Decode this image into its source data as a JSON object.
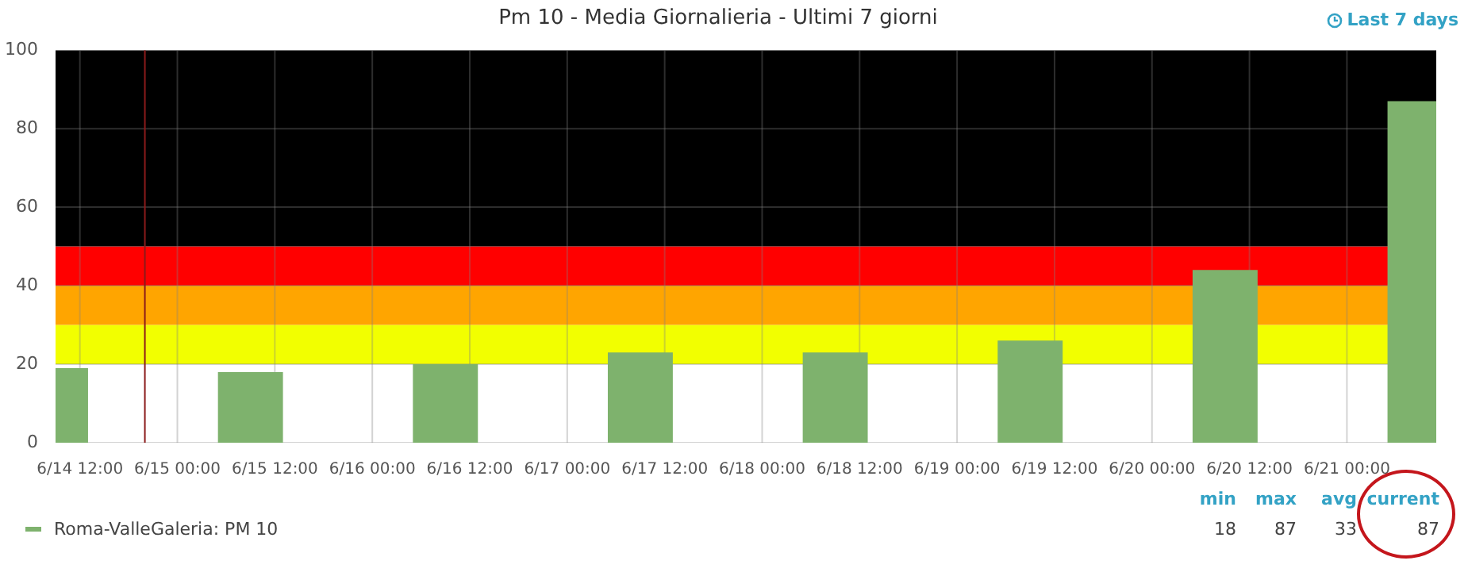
{
  "chart_data": {
    "type": "bar",
    "title": "Pm 10 - Media Giornalieria - Ultimi 7 giorni",
    "x": [
      "--06-14T09:00",
      "--06-15T09:00",
      "--06-16T09:00",
      "--06-17T09:00",
      "--06-18T09:00",
      "--06-19T09:00",
      "--06-20T09:00",
      "--06-21T09:00"
    ],
    "series": [
      {
        "name": "Roma-ValleGaleria: PM 10",
        "color": "#7eb26d",
        "values": [
          19,
          18,
          20,
          23,
          23,
          26,
          44,
          87
        ]
      }
    ],
    "xlim": [
      "--06-14T09:00",
      "--06-21T11:00"
    ],
    "xticks": [
      {
        "value": "--06-14T12:00",
        "label": "6/14 12:00"
      },
      {
        "value": "--06-15T00:00",
        "label": "6/15 00:00"
      },
      {
        "value": "--06-15T12:00",
        "label": "6/15 12:00"
      },
      {
        "value": "--06-16T00:00",
        "label": "6/16 00:00"
      },
      {
        "value": "--06-16T12:00",
        "label": "6/16 12:00"
      },
      {
        "value": "--06-17T00:00",
        "label": "6/17 00:00"
      },
      {
        "value": "--06-17T12:00",
        "label": "6/17 12:00"
      },
      {
        "value": "--06-18T00:00",
        "label": "6/18 00:00"
      },
      {
        "value": "--06-18T12:00",
        "label": "6/18 12:00"
      },
      {
        "value": "--06-19T00:00",
        "label": "6/19 00:00"
      },
      {
        "value": "--06-19T12:00",
        "label": "6/19 12:00"
      },
      {
        "value": "--06-20T00:00",
        "label": "6/20 00:00"
      },
      {
        "value": "--06-20T12:00",
        "label": "6/20 12:00"
      },
      {
        "value": "--06-21T00:00",
        "label": "6/21 00:00"
      }
    ],
    "ylim": [
      0,
      100
    ],
    "yticks": [
      0,
      20,
      40,
      60,
      80,
      100
    ],
    "bands": [
      {
        "axis": "y",
        "from": 20,
        "to": 30,
        "color": "#f2ff00"
      },
      {
        "axis": "y",
        "from": 30,
        "to": 40,
        "color": "#ffa500"
      },
      {
        "axis": "y",
        "from": 40,
        "to": 50,
        "color": "#ff0000"
      },
      {
        "axis": "y",
        "from": 50,
        "to": 100,
        "color": "#000000"
      }
    ],
    "ref_lines": [
      {
        "axis": "x",
        "value": "--06-14T20:00",
        "color": "#8b1a1a"
      }
    ],
    "grid": true,
    "legend": "bottom",
    "annotations": [
      "Last 7 days",
      "min",
      "max",
      "avg",
      "current",
      "18",
      "87",
      "33",
      "87"
    ]
  }
}
